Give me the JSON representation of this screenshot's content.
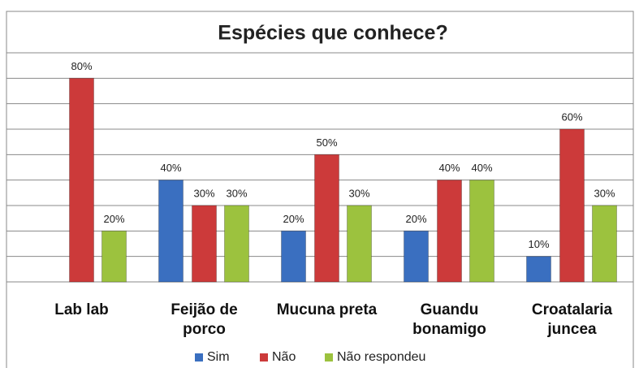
{
  "chart_data": {
    "type": "bar",
    "title": "Espécies que conhece?",
    "categories": [
      "Lab lab",
      "Feijão de porco",
      "Mucuna preta",
      "Guandu bonamigo",
      "Croatalaria juncea"
    ],
    "series": [
      {
        "name": "Sim",
        "color": "#3a6fc0",
        "values": [
          null,
          40,
          20,
          20,
          10
        ],
        "value_labels": [
          null,
          "40%",
          "20%",
          "20%",
          "10%"
        ]
      },
      {
        "name": "Não",
        "color": "#cc3a3a",
        "values": [
          80,
          30,
          50,
          40,
          60
        ],
        "value_labels": [
          "80%",
          "30%",
          "50%",
          "40%",
          "60%"
        ]
      },
      {
        "name": "Não respondeu",
        "color": "#9cc23e",
        "values": [
          20,
          30,
          30,
          40,
          30
        ],
        "value_labels": [
          "20%",
          "30%",
          "30%",
          "40%",
          "30%"
        ]
      }
    ],
    "ylim": [
      0,
      90
    ],
    "yticks": [
      0,
      10,
      20,
      30,
      40,
      50,
      60,
      70,
      80,
      90
    ],
    "grid": true,
    "legend": "bottom"
  }
}
